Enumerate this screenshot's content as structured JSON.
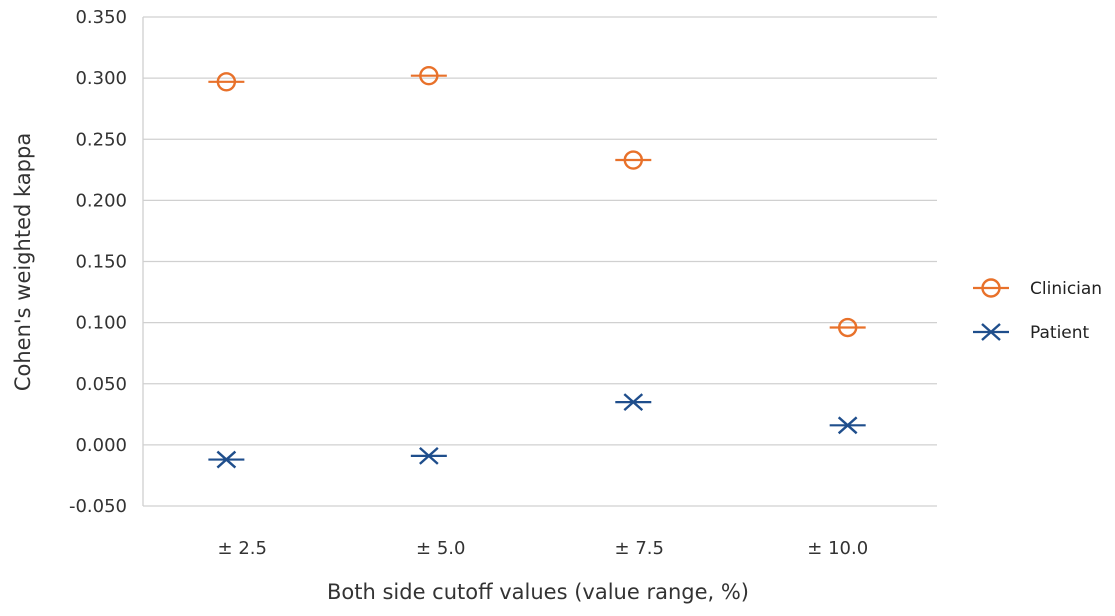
{
  "chart_data": {
    "type": "scatter",
    "categories": [
      "± 2.5",
      "± 5.0",
      "± 7.5",
      "± 10.0"
    ],
    "xlabel": "Both side cutoff values (value range, %)",
    "ylabel": "Cohen's weighted kappa",
    "ylim": [
      -0.05,
      0.35
    ],
    "yticks": [
      "0.350",
      "0.300",
      "0.250",
      "0.200",
      "0.150",
      "0.100",
      "0.050",
      "0.000",
      "-0.050"
    ],
    "grid": true,
    "legend_position": "right",
    "series": [
      {
        "name": "Clinician",
        "marker": "circle",
        "color": "#E8712A",
        "values": [
          0.297,
          0.302,
          0.233,
          0.096
        ]
      },
      {
        "name": "Patient",
        "marker": "x",
        "color": "#1F4E8C",
        "values": [
          -0.012,
          -0.009,
          0.035,
          0.016
        ]
      }
    ]
  }
}
